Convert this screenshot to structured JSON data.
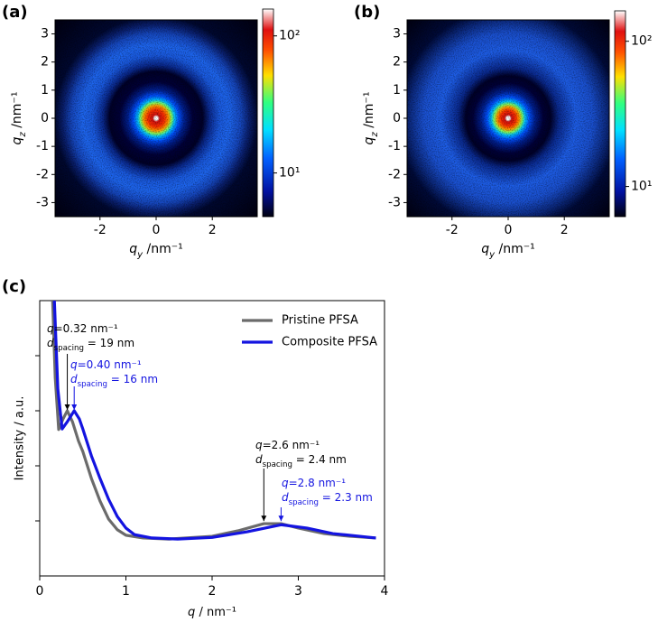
{
  "chart_data": [
    {
      "type": "image",
      "panel_label": "(a)",
      "xlabel": {
        "symbol": "q",
        "subscript": "y",
        "unit": " /nm⁻¹"
      },
      "ylabel": {
        "symbol": "q",
        "subscript": "z",
        "unit": " /nm⁻¹"
      },
      "xlim": [
        -3.6,
        3.6
      ],
      "xticks": [
        -2,
        0,
        2
      ],
      "ylim": [
        -3.5,
        3.5
      ],
      "yticks": [
        -3,
        -2,
        -1,
        0,
        1,
        2,
        3
      ],
      "colorbar": {
        "scale": "log",
        "lim": [
          4.8,
          157
        ],
        "ticks": [
          {
            "value": 10,
            "label": "10¹"
          },
          {
            "value": 100,
            "label": "10²"
          }
        ]
      }
    },
    {
      "type": "image",
      "panel_label": "(b)",
      "xlabel": {
        "symbol": "q",
        "subscript": "y",
        "unit": " /nm⁻¹"
      },
      "ylabel": {
        "symbol": "q",
        "subscript": "z",
        "unit": " /nm⁻¹"
      },
      "xlim": [
        -3.6,
        3.6
      ],
      "xticks": [
        -2,
        0,
        2
      ],
      "ylim": [
        -3.5,
        3.5
      ],
      "yticks": [
        -3,
        -2,
        -1,
        0,
        1,
        2,
        3
      ],
      "colorbar": {
        "scale": "log",
        "lim": [
          6.2,
          162
        ],
        "ticks": [
          {
            "value": 10,
            "label": "10¹"
          },
          {
            "value": 100,
            "label": "10²"
          }
        ]
      }
    },
    {
      "type": "line",
      "panel_label": "(c)",
      "xlabel": {
        "symbol": "q",
        "unit": " / nm⁻¹"
      },
      "ylabel": "Intensity / a.u.",
      "xlim": [
        0,
        4
      ],
      "xticks": [
        0,
        1,
        2,
        3,
        4
      ],
      "ylim": [
        0,
        5
      ],
      "yticks": [
        1,
        2,
        3,
        4
      ],
      "ytick_labels": false,
      "legend": "upper right",
      "series": [
        {
          "name": "Pristine PFSA",
          "color": "#6b6b6b",
          "x": [
            0.15,
            0.18,
            0.22,
            0.27,
            0.32,
            0.38,
            0.45,
            0.5,
            0.6,
            0.7,
            0.8,
            0.9,
            1.0,
            1.2,
            1.5,
            2.0,
            2.3,
            2.6,
            2.8,
            3.0,
            3.3,
            3.6,
            3.9
          ],
          "values": [
            5.0,
            3.6,
            2.66,
            2.85,
            3.0,
            2.8,
            2.45,
            2.26,
            1.77,
            1.36,
            1.03,
            0.84,
            0.74,
            0.69,
            0.67,
            0.72,
            0.82,
            0.95,
            0.95,
            0.87,
            0.77,
            0.72,
            0.69
          ]
        },
        {
          "name": "Composite PFSA",
          "color": "#1414e0",
          "x": [
            0.17,
            0.21,
            0.26,
            0.32,
            0.4,
            0.46,
            0.5,
            0.6,
            0.7,
            0.8,
            0.9,
            1.0,
            1.1,
            1.3,
            1.6,
            2.0,
            2.4,
            2.8,
            3.1,
            3.4,
            3.9
          ],
          "values": [
            5.0,
            3.4,
            2.67,
            2.8,
            3.0,
            2.85,
            2.67,
            2.18,
            1.77,
            1.39,
            1.08,
            0.87,
            0.75,
            0.69,
            0.67,
            0.7,
            0.8,
            0.93,
            0.87,
            0.77,
            0.69
          ]
        }
      ],
      "annotations": [
        {
          "q": "q",
          "q_text": "=0.32 nm⁻¹",
          "d": "d",
          "d_sub": "spacing",
          "d_text": " = 19 nm",
          "x": 0.32,
          "y": 3.0,
          "color": "#000000"
        },
        {
          "q": "q",
          "q_text": "=0.40 nm⁻¹",
          "d": "d",
          "d_sub": "spacing",
          "d_text": " = 16 nm",
          "x": 0.4,
          "y": 3.0,
          "color": "#1414e0"
        },
        {
          "q": "q",
          "q_text": "=2.6 nm⁻¹",
          "d": "d",
          "d_sub": "spacing",
          "d_text": " = 2.4 nm",
          "x": 2.6,
          "y": 0.98,
          "color": "#000000"
        },
        {
          "q": "q",
          "q_text": "=2.8 nm⁻¹",
          "d": "d",
          "d_sub": "spacing",
          "d_text": " = 2.3 nm",
          "x": 2.8,
          "y": 0.98,
          "color": "#1414e0"
        }
      ]
    }
  ]
}
